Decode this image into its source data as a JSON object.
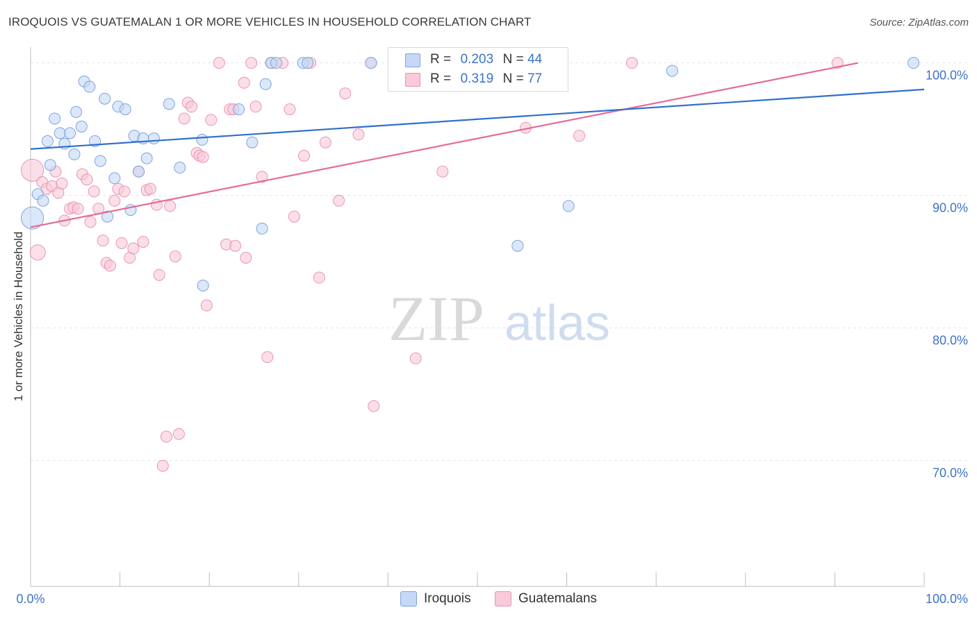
{
  "title": "IROQUOIS VS GUATEMALAN 1 OR MORE VEHICLES IN HOUSEHOLD CORRELATION CHART",
  "source": "Source: ZipAtlas.com",
  "watermark": {
    "zip": "ZIP",
    "atlas": "atlas"
  },
  "legend": {
    "r_label": "R =",
    "n_label": "N =",
    "rows": [
      {
        "name": "Iroquois",
        "r": "0.203",
        "n": "44"
      },
      {
        "name": "Guatemalans",
        "r": "0.319",
        "n": "77"
      }
    ]
  },
  "colors": {
    "iroquois_fill": "#c5d8f5",
    "iroquois_stroke": "#7ba3e0",
    "iroquois_line": "#2f6fcc",
    "guat_fill": "#f9cad9",
    "guat_stroke": "#eb93b0",
    "guat_line": "#e46a97",
    "axis_text": "#3b73c8"
  },
  "chart_data": {
    "type": "scatter",
    "title": "IROQUOIS VS GUATEMALAN 1 OR MORE VEHICLES IN HOUSEHOLD CORRELATION CHART",
    "xlabel": "",
    "ylabel": "1 or more Vehicles in Household",
    "xlim": [
      0,
      100
    ],
    "ylim": [
      60.5,
      101.5
    ],
    "x_tick_labels": [
      "0.0%",
      "100.0%"
    ],
    "y_ticks": [
      {
        "value": 100,
        "label": "100.0%"
      },
      {
        "value": 90,
        "label": "90.0%"
      },
      {
        "value": 80,
        "label": "80.0%"
      },
      {
        "value": 70,
        "label": "70.0%"
      }
    ],
    "series": [
      {
        "name": "Iroquois",
        "r": 0.203,
        "n": 44,
        "trend": {
          "x0": 0,
          "y0": 93.5,
          "x1": 100,
          "y1": 98.0
        },
        "points": [
          [
            0.2,
            88.3,
            16
          ],
          [
            0.8,
            90.1,
            8
          ],
          [
            1.4,
            89.6,
            8
          ],
          [
            1.9,
            94.1,
            8
          ],
          [
            2.2,
            92.3,
            8
          ],
          [
            2.7,
            95.8,
            8
          ],
          [
            3.3,
            94.7,
            8
          ],
          [
            3.8,
            93.9,
            8
          ],
          [
            4.4,
            94.7,
            8
          ],
          [
            4.9,
            93.1,
            8
          ],
          [
            5.1,
            96.3,
            8
          ],
          [
            5.7,
            95.2,
            8
          ],
          [
            6.0,
            98.6,
            8
          ],
          [
            6.6,
            98.2,
            8
          ],
          [
            7.2,
            94.1,
            8
          ],
          [
            7.8,
            92.6,
            8
          ],
          [
            8.3,
            97.3,
            8
          ],
          [
            8.6,
            88.4,
            8
          ],
          [
            9.4,
            91.3,
            8
          ],
          [
            9.8,
            96.7,
            8
          ],
          [
            10.6,
            96.5,
            8
          ],
          [
            11.2,
            88.9,
            8
          ],
          [
            11.6,
            94.5,
            8
          ],
          [
            12.1,
            91.8,
            8
          ],
          [
            12.6,
            94.3,
            8
          ],
          [
            13.0,
            92.8,
            8
          ],
          [
            13.8,
            94.3,
            8
          ],
          [
            16.7,
            92.1,
            8
          ],
          [
            15.5,
            96.9,
            8
          ],
          [
            19.2,
            94.2,
            8
          ],
          [
            19.3,
            83.2,
            8
          ],
          [
            23.3,
            96.5,
            8
          ],
          [
            24.8,
            94.0,
            8
          ],
          [
            25.9,
            87.5,
            8
          ],
          [
            26.3,
            98.4,
            8
          ],
          [
            26.9,
            100.0,
            8
          ],
          [
            27.5,
            100.0,
            8
          ],
          [
            30.5,
            100.0,
            8
          ],
          [
            31.0,
            100.0,
            8
          ],
          [
            38.1,
            100.0,
            8
          ],
          [
            54.5,
            86.2,
            8
          ],
          [
            60.2,
            89.2,
            8
          ],
          [
            71.8,
            99.4,
            8
          ],
          [
            98.8,
            100.0,
            8
          ]
        ]
      },
      {
        "name": "Guatemalans",
        "r": 0.319,
        "n": 77,
        "trend": {
          "x0": 0,
          "y0": 87.6,
          "x1": 92.6,
          "y1": 100.0
        },
        "points": [
          [
            0.2,
            91.9,
            16
          ],
          [
            0.8,
            85.7,
            11
          ],
          [
            1.3,
            91.0,
            8
          ],
          [
            1.8,
            90.5,
            8
          ],
          [
            2.4,
            90.7,
            8
          ],
          [
            2.8,
            91.8,
            8
          ],
          [
            3.1,
            90.2,
            8
          ],
          [
            3.5,
            90.9,
            8
          ],
          [
            3.8,
            88.1,
            8
          ],
          [
            4.4,
            89.0,
            8
          ],
          [
            4.8,
            89.1,
            8
          ],
          [
            5.3,
            89.0,
            8
          ],
          [
            5.8,
            91.6,
            8
          ],
          [
            6.3,
            91.2,
            8
          ],
          [
            6.7,
            88.0,
            8
          ],
          [
            7.1,
            90.3,
            8
          ],
          [
            7.6,
            89.0,
            8
          ],
          [
            8.1,
            86.6,
            8
          ],
          [
            8.5,
            84.9,
            8
          ],
          [
            8.9,
            84.7,
            8
          ],
          [
            9.4,
            89.6,
            8
          ],
          [
            9.8,
            90.5,
            8
          ],
          [
            10.2,
            86.4,
            8
          ],
          [
            10.5,
            90.3,
            8
          ],
          [
            11.1,
            85.3,
            8
          ],
          [
            11.5,
            86.0,
            8
          ],
          [
            12.1,
            91.8,
            8
          ],
          [
            12.6,
            86.5,
            8
          ],
          [
            13.0,
            90.4,
            8
          ],
          [
            13.4,
            90.5,
            8
          ],
          [
            14.1,
            89.3,
            8
          ],
          [
            14.4,
            84.0,
            8
          ],
          [
            14.8,
            69.6,
            8
          ],
          [
            15.2,
            71.8,
            8
          ],
          [
            15.6,
            89.2,
            8
          ],
          [
            16.2,
            85.4,
            8
          ],
          [
            16.6,
            72.0,
            8
          ],
          [
            17.2,
            95.8,
            8
          ],
          [
            17.6,
            97.0,
            8
          ],
          [
            18.0,
            96.7,
            8
          ],
          [
            18.6,
            93.2,
            8
          ],
          [
            18.9,
            93.0,
            8
          ],
          [
            19.3,
            92.9,
            8
          ],
          [
            19.7,
            81.7,
            8
          ],
          [
            20.2,
            95.7,
            8
          ],
          [
            21.1,
            100.0,
            8
          ],
          [
            21.9,
            86.3,
            8
          ],
          [
            22.3,
            96.5,
            8
          ],
          [
            22.7,
            96.5,
            8
          ],
          [
            22.9,
            86.2,
            8
          ],
          [
            23.9,
            98.5,
            8
          ],
          [
            24.1,
            85.3,
            8
          ],
          [
            24.7,
            100.0,
            8
          ],
          [
            25.2,
            96.7,
            8
          ],
          [
            25.9,
            91.4,
            8
          ],
          [
            26.5,
            77.8,
            8
          ],
          [
            27.0,
            100.0,
            8
          ],
          [
            28.2,
            100.0,
            8
          ],
          [
            29.0,
            96.5,
            8
          ],
          [
            29.5,
            88.4,
            8
          ],
          [
            30.6,
            93.0,
            8
          ],
          [
            31.3,
            100.0,
            8
          ],
          [
            32.3,
            83.8,
            8
          ],
          [
            33.0,
            94.0,
            8
          ],
          [
            34.5,
            89.6,
            8
          ],
          [
            35.2,
            97.7,
            8
          ],
          [
            36.7,
            94.6,
            8
          ],
          [
            38.1,
            100.0,
            8
          ],
          [
            38.4,
            74.1,
            8
          ],
          [
            43.1,
            77.7,
            8
          ],
          [
            46.3,
            100.0,
            8
          ],
          [
            46.1,
            91.8,
            8
          ],
          [
            53.5,
            100.0,
            8
          ],
          [
            55.4,
            95.1,
            8
          ],
          [
            67.3,
            100.0,
            8
          ],
          [
            61.4,
            94.5,
            8
          ],
          [
            90.3,
            100.0,
            8
          ]
        ]
      }
    ]
  }
}
